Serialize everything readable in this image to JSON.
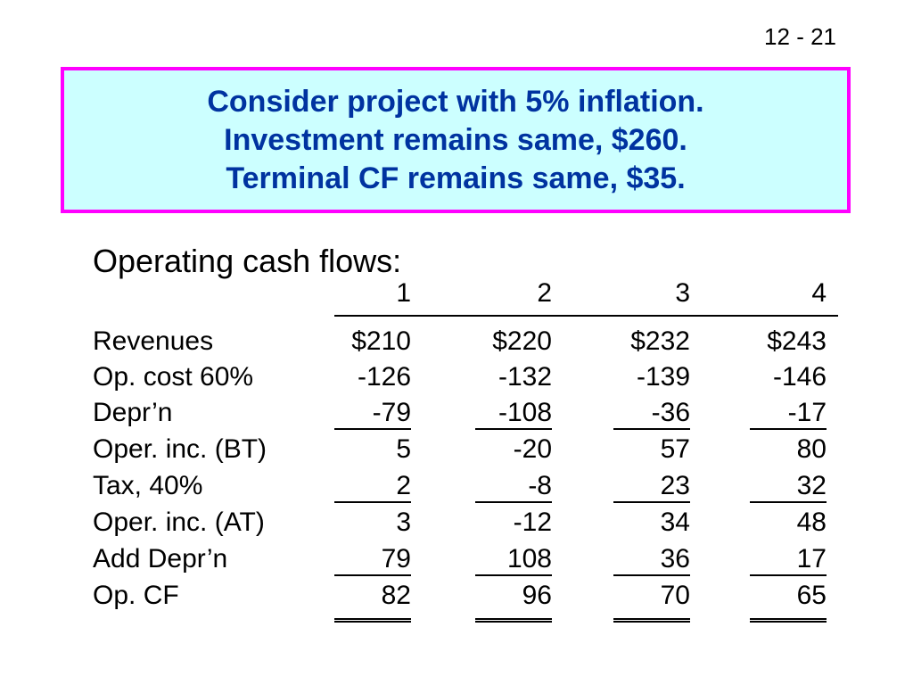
{
  "slide": {
    "page_number": "12 - 21"
  },
  "title": {
    "lines": [
      "Consider project with 5% inflation.",
      "Investment remains same, $260.",
      "Terminal CF remains same, $35."
    ]
  },
  "subheading": "Operating cash flows:",
  "table": {
    "years": [
      "1",
      "2",
      "3",
      "4"
    ],
    "rows": [
      {
        "label": "Revenues",
        "values": [
          "$210",
          "$220",
          "$232",
          "$243"
        ]
      },
      {
        "label": "Op. cost 60%",
        "values": [
          "-126",
          "-132",
          "-139",
          "-146"
        ]
      },
      {
        "label": "Depr’n",
        "values": [
          "-79",
          "-108",
          "-36",
          "-17"
        ]
      },
      {
        "label": "Oper. inc. (BT)",
        "values": [
          "5",
          "-20",
          "57",
          "80"
        ]
      },
      {
        "label": "Tax, 40%",
        "values": [
          "2",
          "-8",
          "23",
          "32"
        ]
      },
      {
        "label": "Oper. inc. (AT)",
        "values": [
          "3",
          "-12",
          "34",
          "48"
        ]
      },
      {
        "label": "Add Depr’n",
        "values": [
          "79",
          "108",
          "36",
          "17"
        ]
      },
      {
        "label": "Op. CF",
        "values": [
          "82",
          "96",
          "70",
          "65"
        ]
      }
    ]
  }
}
